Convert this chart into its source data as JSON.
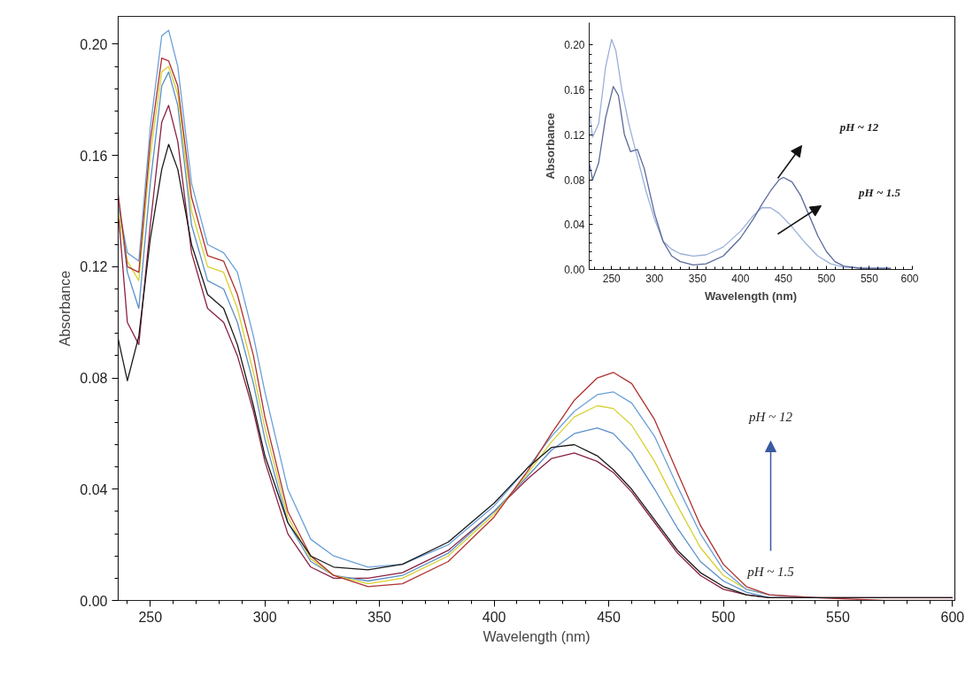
{
  "chart_data": [
    {
      "type": "line",
      "xlabel": "Wavelength (nm)",
      "ylabel": "Absorbance",
      "xlim": [
        236,
        601
      ],
      "ylim": [
        0,
        0.21
      ],
      "xticks": [
        250,
        300,
        350,
        400,
        450,
        500,
        550,
        600
      ],
      "yticks": [
        {
          "value": 0,
          "label": "0.00"
        },
        {
          "value": 0.04,
          "label": "0.04"
        },
        {
          "value": 0.08,
          "label": "0.08"
        },
        {
          "value": 0.12,
          "label": "0.12"
        },
        {
          "value": 0.16,
          "label": "0.16"
        },
        {
          "value": 0.2,
          "label": "0.20"
        }
      ],
      "x": [
        236,
        240,
        245,
        250,
        255,
        258,
        262,
        268,
        275,
        282,
        288,
        295,
        300,
        310,
        320,
        330,
        345,
        360,
        380,
        400,
        415,
        425,
        435,
        445,
        452,
        460,
        470,
        480,
        490,
        500,
        510,
        520,
        540,
        570,
        600
      ],
      "series": [
        {
          "color": "#8a2040",
          "values": [
            0.14,
            0.1,
            0.092,
            0.135,
            0.172,
            0.178,
            0.165,
            0.125,
            0.105,
            0.1,
            0.088,
            0.068,
            0.05,
            0.024,
            0.012,
            0.008,
            0.008,
            0.01,
            0.018,
            0.032,
            0.044,
            0.051,
            0.053,
            0.05,
            0.046,
            0.039,
            0.028,
            0.017,
            0.009,
            0.004,
            0.002,
            0.001,
            0.001,
            0.001,
            0.001
          ]
        },
        {
          "color": "#5b8fc9",
          "values": [
            0.145,
            0.118,
            0.105,
            0.15,
            0.185,
            0.19,
            0.178,
            0.135,
            0.115,
            0.112,
            0.1,
            0.078,
            0.058,
            0.028,
            0.014,
            0.009,
            0.007,
            0.009,
            0.017,
            0.032,
            0.045,
            0.054,
            0.06,
            0.062,
            0.06,
            0.053,
            0.04,
            0.026,
            0.014,
            0.007,
            0.003,
            0.001,
            0.001,
            null,
            null
          ]
        },
        {
          "color": "#d8d030",
          "values": [
            0.14,
            0.122,
            0.115,
            0.16,
            0.19,
            0.192,
            0.182,
            0.14,
            0.12,
            0.118,
            0.105,
            0.082,
            0.062,
            0.03,
            0.015,
            0.009,
            0.006,
            0.008,
            0.016,
            0.031,
            0.046,
            0.057,
            0.066,
            0.07,
            0.069,
            0.063,
            0.05,
            0.034,
            0.019,
            0.009,
            0.004,
            0.002,
            null,
            null,
            null
          ]
        },
        {
          "color": "#6aa0d8",
          "values": [
            0.142,
            0.125,
            0.122,
            0.17,
            0.203,
            0.205,
            0.192,
            0.15,
            0.128,
            0.125,
            0.118,
            0.095,
            0.075,
            0.04,
            0.022,
            0.016,
            0.012,
            0.013,
            0.02,
            0.034,
            0.048,
            0.059,
            0.068,
            0.074,
            0.075,
            0.071,
            0.059,
            0.041,
            0.024,
            0.011,
            0.004,
            0.002,
            0.001,
            null,
            null
          ]
        },
        {
          "color": "#b03030",
          "values": [
            0.146,
            0.12,
            0.118,
            0.165,
            0.195,
            0.194,
            0.185,
            0.145,
            0.124,
            0.122,
            0.11,
            0.088,
            0.066,
            0.032,
            0.016,
            0.009,
            0.005,
            0.006,
            0.014,
            0.03,
            0.047,
            0.06,
            0.072,
            0.08,
            0.082,
            0.078,
            0.065,
            0.046,
            0.027,
            0.013,
            0.005,
            0.002,
            0.001,
            0.0,
            0.0
          ]
        },
        {
          "color": "#1a1a1a",
          "values": [
            0.094,
            0.079,
            0.095,
            0.13,
            0.155,
            0.164,
            0.155,
            0.128,
            0.11,
            0.105,
            0.092,
            0.07,
            0.052,
            0.028,
            0.016,
            0.012,
            0.011,
            0.013,
            0.021,
            0.035,
            0.048,
            0.055,
            0.056,
            0.052,
            0.047,
            0.04,
            0.029,
            0.018,
            0.01,
            0.005,
            0.002,
            0.001,
            0.001,
            0.001,
            0.001
          ]
        }
      ],
      "annotations": [
        "pH ~ 12",
        "pH ~ 1.5"
      ]
    },
    {
      "type": "line",
      "xlabel": "Wavelength (nm)",
      "ylabel": "Absorbance",
      "xlim": [
        224,
        600
      ],
      "ylim": [
        0,
        0.22
      ],
      "xticks": [
        250,
        300,
        350,
        400,
        450,
        500,
        550,
        600
      ],
      "yticks": [
        {
          "value": 0,
          "label": "0.00"
        },
        {
          "value": 0.04,
          "label": "0.04"
        },
        {
          "value": 0.08,
          "label": "0.08"
        },
        {
          "value": 0.12,
          "label": "0.12"
        },
        {
          "value": 0.16,
          "label": "0.16"
        },
        {
          "value": 0.2,
          "label": "0.20"
        }
      ],
      "series": [
        {
          "color": "#9ab0d8",
          "x": [
            224,
            228,
            235,
            243,
            250,
            255,
            262,
            270,
            280,
            290,
            300,
            310,
            320,
            330,
            345,
            360,
            380,
            400,
            415,
            425,
            435,
            445,
            460,
            475,
            490,
            505,
            520,
            550,
            575
          ],
          "values": [
            0.14,
            0.118,
            0.13,
            0.18,
            0.205,
            0.195,
            0.16,
            0.13,
            0.1,
            0.07,
            0.045,
            0.025,
            0.018,
            0.014,
            0.012,
            0.013,
            0.02,
            0.034,
            0.048,
            0.055,
            0.055,
            0.05,
            0.038,
            0.024,
            0.012,
            0.005,
            0.002,
            0.001,
            0.001
          ]
        },
        {
          "color": "#5a6a9a",
          "x": [
            224,
            228,
            235,
            243,
            252,
            258,
            265,
            272,
            280,
            288,
            300,
            310,
            320,
            330,
            345,
            360,
            380,
            400,
            415,
            425,
            435,
            445,
            450,
            460,
            470,
            480,
            490,
            500,
            510,
            520,
            540,
            575
          ],
          "values": [
            0.095,
            0.08,
            0.095,
            0.135,
            0.163,
            0.155,
            0.12,
            0.105,
            0.107,
            0.09,
            0.05,
            0.025,
            0.012,
            0.007,
            0.004,
            0.005,
            0.012,
            0.028,
            0.045,
            0.058,
            0.07,
            0.08,
            0.082,
            0.078,
            0.066,
            0.048,
            0.03,
            0.016,
            0.007,
            0.003,
            0.001,
            0.001
          ]
        }
      ],
      "annotations": [
        "pH ~ 12",
        "pH ~ 1.5"
      ]
    }
  ]
}
